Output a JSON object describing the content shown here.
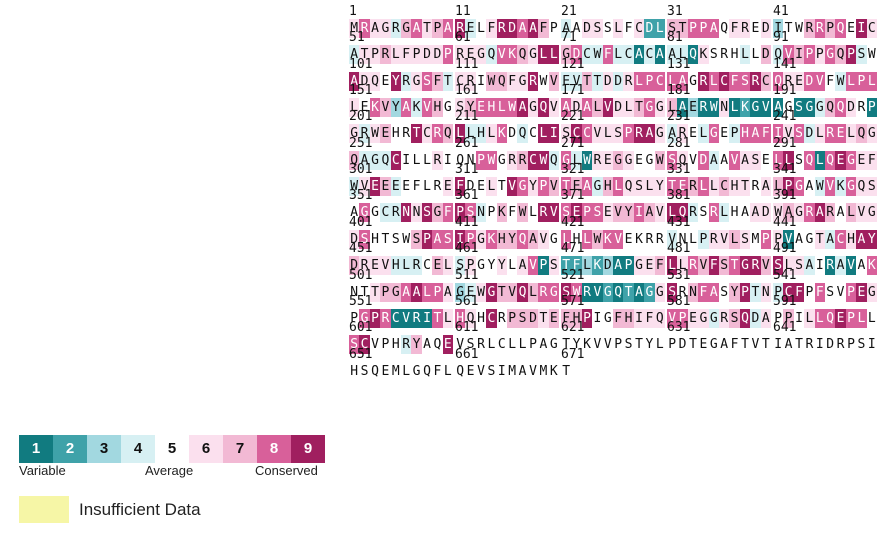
{
  "sequence": "MRAGRGATPARELFRDAAFPAADSSLFCDLSTPPAQFREDITWRRPQEICATPRLFPDDPREGQVKQGLLGDCWFLCACAALQKSRHLLDQVIPPGQPSWADQEYRGSFTCRIWQFGRWVEVTTDDRLPCLAGRLCFSRCQREDVFWLPLLEKVYAKVHGSYEHLWAGQVADALVDLTGGLAERWNLKGVAGSGGQQDRPGRWEHRTCRQLLHLKDQCLISCCVLSPRAGARELGEPHAFIVSDLRELQGQAGQCILLRIQNPWGRRCWQGLWREGGEGWSQVDAAVASELLSQLQEGEFWVEEEEFLREFDELTVGYPVTEAGHLQSLYTERLLCHTRALPGAWVKGQSAGGCRNNSGFPSNPKFWLRVSEPSEVYIAVLQRSRLHAADWAGRARALVGDSHTSWSPASIPGKHYQAVGLHLWKVEKRRVNLPRVLSMPPVAGTACHAYDREVHLRCELSPGYYLAVPSTFLKDAPGEFLLRVFSTGRVSLSAIRAVAKNTTPGAALPAGEWGTVQLRGSWRVGQTAGGSRNFASYPTNPCFPFSVPEGPGPRCVRITLHQHCRPSDTEFHPIGFHIFQVPEGGRSQDAPPILLQEPLLSCVPHRYAQEVSRLCLLPAGTYKVVPSTYLPDTEGAFTVTIATRIDRPSIHSQEMLGQFLQEVSIMAVMKT",
  "scores": "68664786789456998975456656562277888566563557878596466766666866648876997844844141441655545748786879459665946874665776695744746468888859898897866885488865873848756788889696868796678671311612111511478651646755968794468545996986668996465485488886846886767444955565558856799484166765578658458665895818986646974555569565598687878478666688878676656798548486658544969789845757599898867787699458455666768975766685555798898687787658587885555455466765861556486997666444576465565681622323116679687978997966451415855677898863469779788981121212695788579464995855896589811118686595777677795577666886646794657568898858955547559",
  "seq_blocks": [
    {
      "start": "1",
      "letters": "MRAGRGATPA",
      "scores": "6866478678"
    },
    {
      "start": "11",
      "letters": "RELFRDAAFP",
      "scores": "9456998975"
    },
    {
      "start": "21",
      "letters": "AADSSLFCDL",
      "scores": "4566565622"
    },
    {
      "start": "31",
      "letters": "STPPAQFRED",
      "scores": "7788856656"
    },
    {
      "start": "41",
      "letters": "ITWRRPQEIC",
      "scores": "3557878596"
    },
    {
      "start": "51",
      "letters": "ATPRLFPDDP",
      "scores": "4667666668"
    },
    {
      "start": "61",
      "letters": "REGQVKQGLL",
      "scores": "6664887699"
    },
    {
      "start": "71",
      "letters": "GDCWFLCACA",
      "scores": "7844844141"
    },
    {
      "start": "81",
      "letters": "ALQKSRHLLD",
      "scores": "4416555457"
    },
    {
      "start": "91",
      "letters": "QVIPPGQPSW",
      "scores": "4878687945"
    },
    {
      "start": "101",
      "letters": "ADQEYRGSFT",
      "scores": "9665946874"
    },
    {
      "start": "111",
      "letters": "CRIWQFGRWV",
      "scores": "6657766957"
    },
    {
      "start": "121",
      "letters": "EVTTDDRLPC",
      "scores": "4474646888"
    },
    {
      "start": "131",
      "letters": "LAGRLCFSRC",
      "scores": "8859898897"
    },
    {
      "start": "141",
      "letters": "QREDVFWLPL",
      "scores": "8668854888"
    },
    {
      "start": "151",
      "letters": "LEKVYAKVHG",
      "scores": "6587384875"
    },
    {
      "start": "161",
      "letters": "SYEHLWAGQV",
      "scores": "6788889696"
    },
    {
      "start": "171",
      "letters": "ADALVDLTGG",
      "scores": "8687966786"
    },
    {
      "start": "181",
      "letters": "LAERWNLKGV",
      "scores": "7131161211"
    },
    {
      "start": "191",
      "letters": "AGSGGQQDRP",
      "scores": "1511478651"
    },
    {
      "start": "201",
      "letters": "GRWEHRTCRQ",
      "scores": "6467559687"
    },
    {
      "start": "211",
      "letters": "LLHLKDQCLI",
      "scores": "9446854599"
    },
    {
      "start": "221",
      "letters": "SCCVLSPRAG",
      "scores": "6986668996"
    },
    {
      "start": "231",
      "letters": "ARELGEPHAF",
      "scores": "4654854888"
    },
    {
      "start": "241",
      "letters": "IVSDLRELQG",
      "scores": "8684688676"
    },
    {
      "start": "251",
      "letters": "QAGQCILLRI",
      "scores": "7444955565"
    },
    {
      "start": "261",
      "letters": "QNPWGRRCWQ",
      "scores": "5588567994"
    },
    {
      "start": "271",
      "letters": "GLWREGGEGW",
      "scores": "8416676557"
    },
    {
      "start": "281",
      "letters": "SQVDAAVASE",
      "scores": "8658458665"
    },
    {
      "start": "291",
      "letters": "LLSQLQEGEF",
      "scores": "8958189866"
    },
    {
      "start": "301",
      "letters": "WVEEEEFLRE",
      "scores": "4697455556"
    },
    {
      "start": "311",
      "letters": "FDELTVGYPV",
      "scores": "9556598687"
    },
    {
      "start": "321",
      "letters": "TEAGHLQSLY",
      "scores": "8784786666"
    },
    {
      "start": "331",
      "letters": "TERLLCHTRA",
      "scores": "8878676656"
    },
    {
      "start": "341",
      "letters": "LPGAWVKGQS",
      "scores": "7985484866"
    },
    {
      "start": "351",
      "letters": "AGGCRNNSGF",
      "scores": "5854496978"
    },
    {
      "start": "361",
      "letters": "PSNPKFWLRV",
      "scores": "9845757599"
    },
    {
      "start": "371",
      "letters": "SEPSEVYIAV",
      "scores": "8988677876"
    },
    {
      "start": "381",
      "letters": "LQRSRLHAAD",
      "scores": "9945845566"
    },
    {
      "start": "391",
      "letters": "WAGRARALVG",
      "scores": "6768975766"
    },
    {
      "start": "401",
      "letters": "DSHTSWSPAS",
      "scores": "6855557988"
    },
    {
      "start": "411",
      "letters": "IPGKHYQAVG",
      "scores": "9868778765"
    },
    {
      "start": "421",
      "letters": "LHLWKVEKRR",
      "scores": "8587885555"
    },
    {
      "start": "431",
      "letters": "VNLPRVLSMP",
      "scores": "4554667658"
    },
    {
      "start": "441",
      "letters": "PVAGTACHAY",
      "scores": "6155648699"
    },
    {
      "start": "451",
      "letters": "DREVHLRCEL",
      "scores": "7666444576"
    },
    {
      "start": "461",
      "letters": "SPGYYLAVPS",
      "scores": "4655656816"
    },
    {
      "start": "471",
      "letters": "TFLKDAPGEF",
      "scores": "2232311667"
    },
    {
      "start": "481",
      "letters": "LLRVFSTGRV",
      "scores": "9687978997"
    },
    {
      "start": "491",
      "letters": "SLSAIRAVAK",
      "scores": "9664514158"
    },
    {
      "start": "501",
      "letters": "NTTPGAALPA",
      "scores": "5567789886"
    },
    {
      "start": "511",
      "letters": "GEWGTVQLRG",
      "scores": "3469779788"
    },
    {
      "start": "521",
      "letters": "SWRVGQTAGG",
      "scores": "9811212126"
    },
    {
      "start": "531",
      "letters": "SRNFASYPTN",
      "scores": "9578857946"
    },
    {
      "start": "541",
      "letters": "PCFPFSVPEG",
      "scores": "4995855896"
    },
    {
      "start": "551",
      "letters": "PGPRCVRITL",
      "scores": "5898111186"
    },
    {
      "start": "561",
      "letters": "HQHCRPSDTE",
      "scores": "8659577767"
    },
    {
      "start": "571",
      "letters": "FHPIGFHIFQ",
      "scores": "7795577666"
    },
    {
      "start": "581",
      "letters": "VPEGGRSQDA",
      "scores": "8866467946"
    },
    {
      "start": "591",
      "letters": "PPILLQEPLL",
      "scores": "5756889885"
    },
    {
      "start": "601",
      "letters": "SCVPHRYAQE",
      "scores": "8955547559"
    },
    {
      "start": "611",
      "letters": "VSRLCLLPAG",
      "scores": ""
    },
    {
      "start": "621",
      "letters": "TYKVVPSTYL",
      "scores": ""
    },
    {
      "start": "631",
      "letters": "PDTEGAFTVT",
      "scores": ""
    },
    {
      "start": "641",
      "letters": "IATRIDRPSI",
      "scores": ""
    },
    {
      "start": "651",
      "letters": "HSQEMLGQFL",
      "scores": ""
    },
    {
      "start": "661",
      "letters": "QEVSIMAVMK",
      "scores": ""
    },
    {
      "start": "671",
      "letters": "T",
      "scores": ""
    }
  ],
  "legend": {
    "grades": [
      "1",
      "2",
      "3",
      "4",
      "5",
      "6",
      "7",
      "8",
      "9"
    ],
    "label_variable": "Variable",
    "label_average": "Average",
    "label_conserved": "Conserved",
    "insufficient_label": "Insufficient Data"
  },
  "colors": {
    "1": "#117b80",
    "2": "#3fa2a9",
    "3": "#a2d8e0",
    "4": "#d7f0f3",
    "5": "#ffffff",
    "6": "#fbe0ee",
    "7": "#f2b9d4",
    "8": "#d8609a",
    "9": "#a01f5f",
    "insufficient": "#f6f6a6"
  }
}
